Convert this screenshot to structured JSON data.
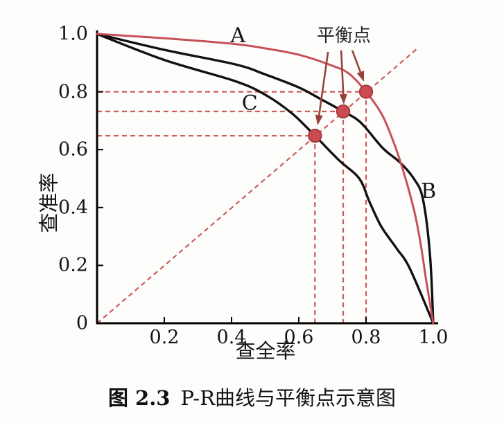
{
  "caption": {
    "label_bold": "图 2.3",
    "text": "P-R曲线与平衡点示意图"
  },
  "chart_data": {
    "type": "line",
    "title": "P-R曲线与平衡点示意图",
    "xlabel": "查全率",
    "ylabel": "查准率",
    "xlim": [
      0,
      1.0
    ],
    "ylim": [
      0,
      1.0
    ],
    "grid": false,
    "legend_position": "none (curves labeled inline)",
    "x_tick_labels": [
      "0.2",
      "0.4",
      "0.6",
      "0.8",
      "1.0"
    ],
    "y_tick_labels": [
      "0",
      "0.2",
      "0.4",
      "0.6",
      "0.8",
      "1.0"
    ],
    "series": [
      {
        "name": "C",
        "color": "#111111",
        "width": 3.4,
        "points": [
          [
            0,
            1.0
          ],
          [
            0.2,
            0.91
          ],
          [
            0.41,
            0.837
          ],
          [
            0.5,
            0.79
          ],
          [
            0.58,
            0.725
          ],
          [
            0.648,
            0.648
          ],
          [
            0.72,
            0.563
          ],
          [
            0.78,
            0.5
          ],
          [
            0.81,
            0.42
          ],
          [
            0.845,
            0.335
          ],
          [
            0.89,
            0.26
          ],
          [
            0.93,
            0.19
          ],
          [
            1.0,
            0
          ]
        ]
      },
      {
        "name": "B",
        "color": "#111111",
        "width": 3.4,
        "points": [
          [
            0,
            1.0
          ],
          [
            0.2,
            0.945
          ],
          [
            0.41,
            0.895
          ],
          [
            0.5,
            0.86
          ],
          [
            0.6,
            0.815
          ],
          [
            0.665,
            0.775
          ],
          [
            0.732,
            0.732
          ],
          [
            0.784,
            0.694
          ],
          [
            0.85,
            0.605
          ],
          [
            0.9,
            0.557
          ],
          [
            0.942,
            0.5
          ],
          [
            0.969,
            0.43
          ],
          [
            0.99,
            0.24
          ],
          [
            1.0,
            0
          ]
        ]
      },
      {
        "name": "A",
        "color": "#c75058",
        "width": 3.0,
        "points": [
          [
            0,
            1.0
          ],
          [
            0.2,
            0.985
          ],
          [
            0.41,
            0.965
          ],
          [
            0.5,
            0.95
          ],
          [
            0.6,
            0.928
          ],
          [
            0.7,
            0.89
          ],
          [
            0.75,
            0.862
          ],
          [
            0.8,
            0.8
          ],
          [
            0.85,
            0.715
          ],
          [
            0.89,
            0.6
          ],
          [
            0.92,
            0.49
          ],
          [
            0.945,
            0.38
          ],
          [
            0.963,
            0.27
          ],
          [
            0.98,
            0.14
          ],
          [
            1.0,
            0
          ]
        ]
      }
    ],
    "curve_labels": [
      {
        "text": "A",
        "x": 0.419,
        "y": 0.993
      },
      {
        "text": "B",
        "x": 0.986,
        "y": 0.455
      },
      {
        "text": "C",
        "x": 0.454,
        "y": 0.758
      }
    ],
    "break_even_label": {
      "text": "平衡点",
      "x": 0.734,
      "y": 0.993
    },
    "break_even_points": [
      [
        0.648,
        0.648
      ],
      [
        0.732,
        0.732
      ],
      [
        0.8,
        0.8
      ]
    ],
    "diagonal": {
      "x1": 0,
      "y1": 0,
      "x2": 0.953,
      "y2": 0.95
    },
    "arrows": [
      {
        "x1": 0.687,
        "y1": 0.938,
        "x2": 0.656,
        "y2": 0.684
      },
      {
        "x1": 0.726,
        "y1": 0.943,
        "x2": 0.734,
        "y2": 0.756
      },
      {
        "x1": 0.759,
        "y1": 0.943,
        "x2": 0.794,
        "y2": 0.835
      }
    ],
    "colors": {
      "curve_a": "#c75058",
      "curve_bc": "#111111",
      "dashed": "#cd5c5c",
      "dot_fill": "#cc4a52",
      "dot_stroke": "#a83a40",
      "arrow": "#96423a",
      "axis": "#000000",
      "text": "#1c1c1c"
    }
  }
}
